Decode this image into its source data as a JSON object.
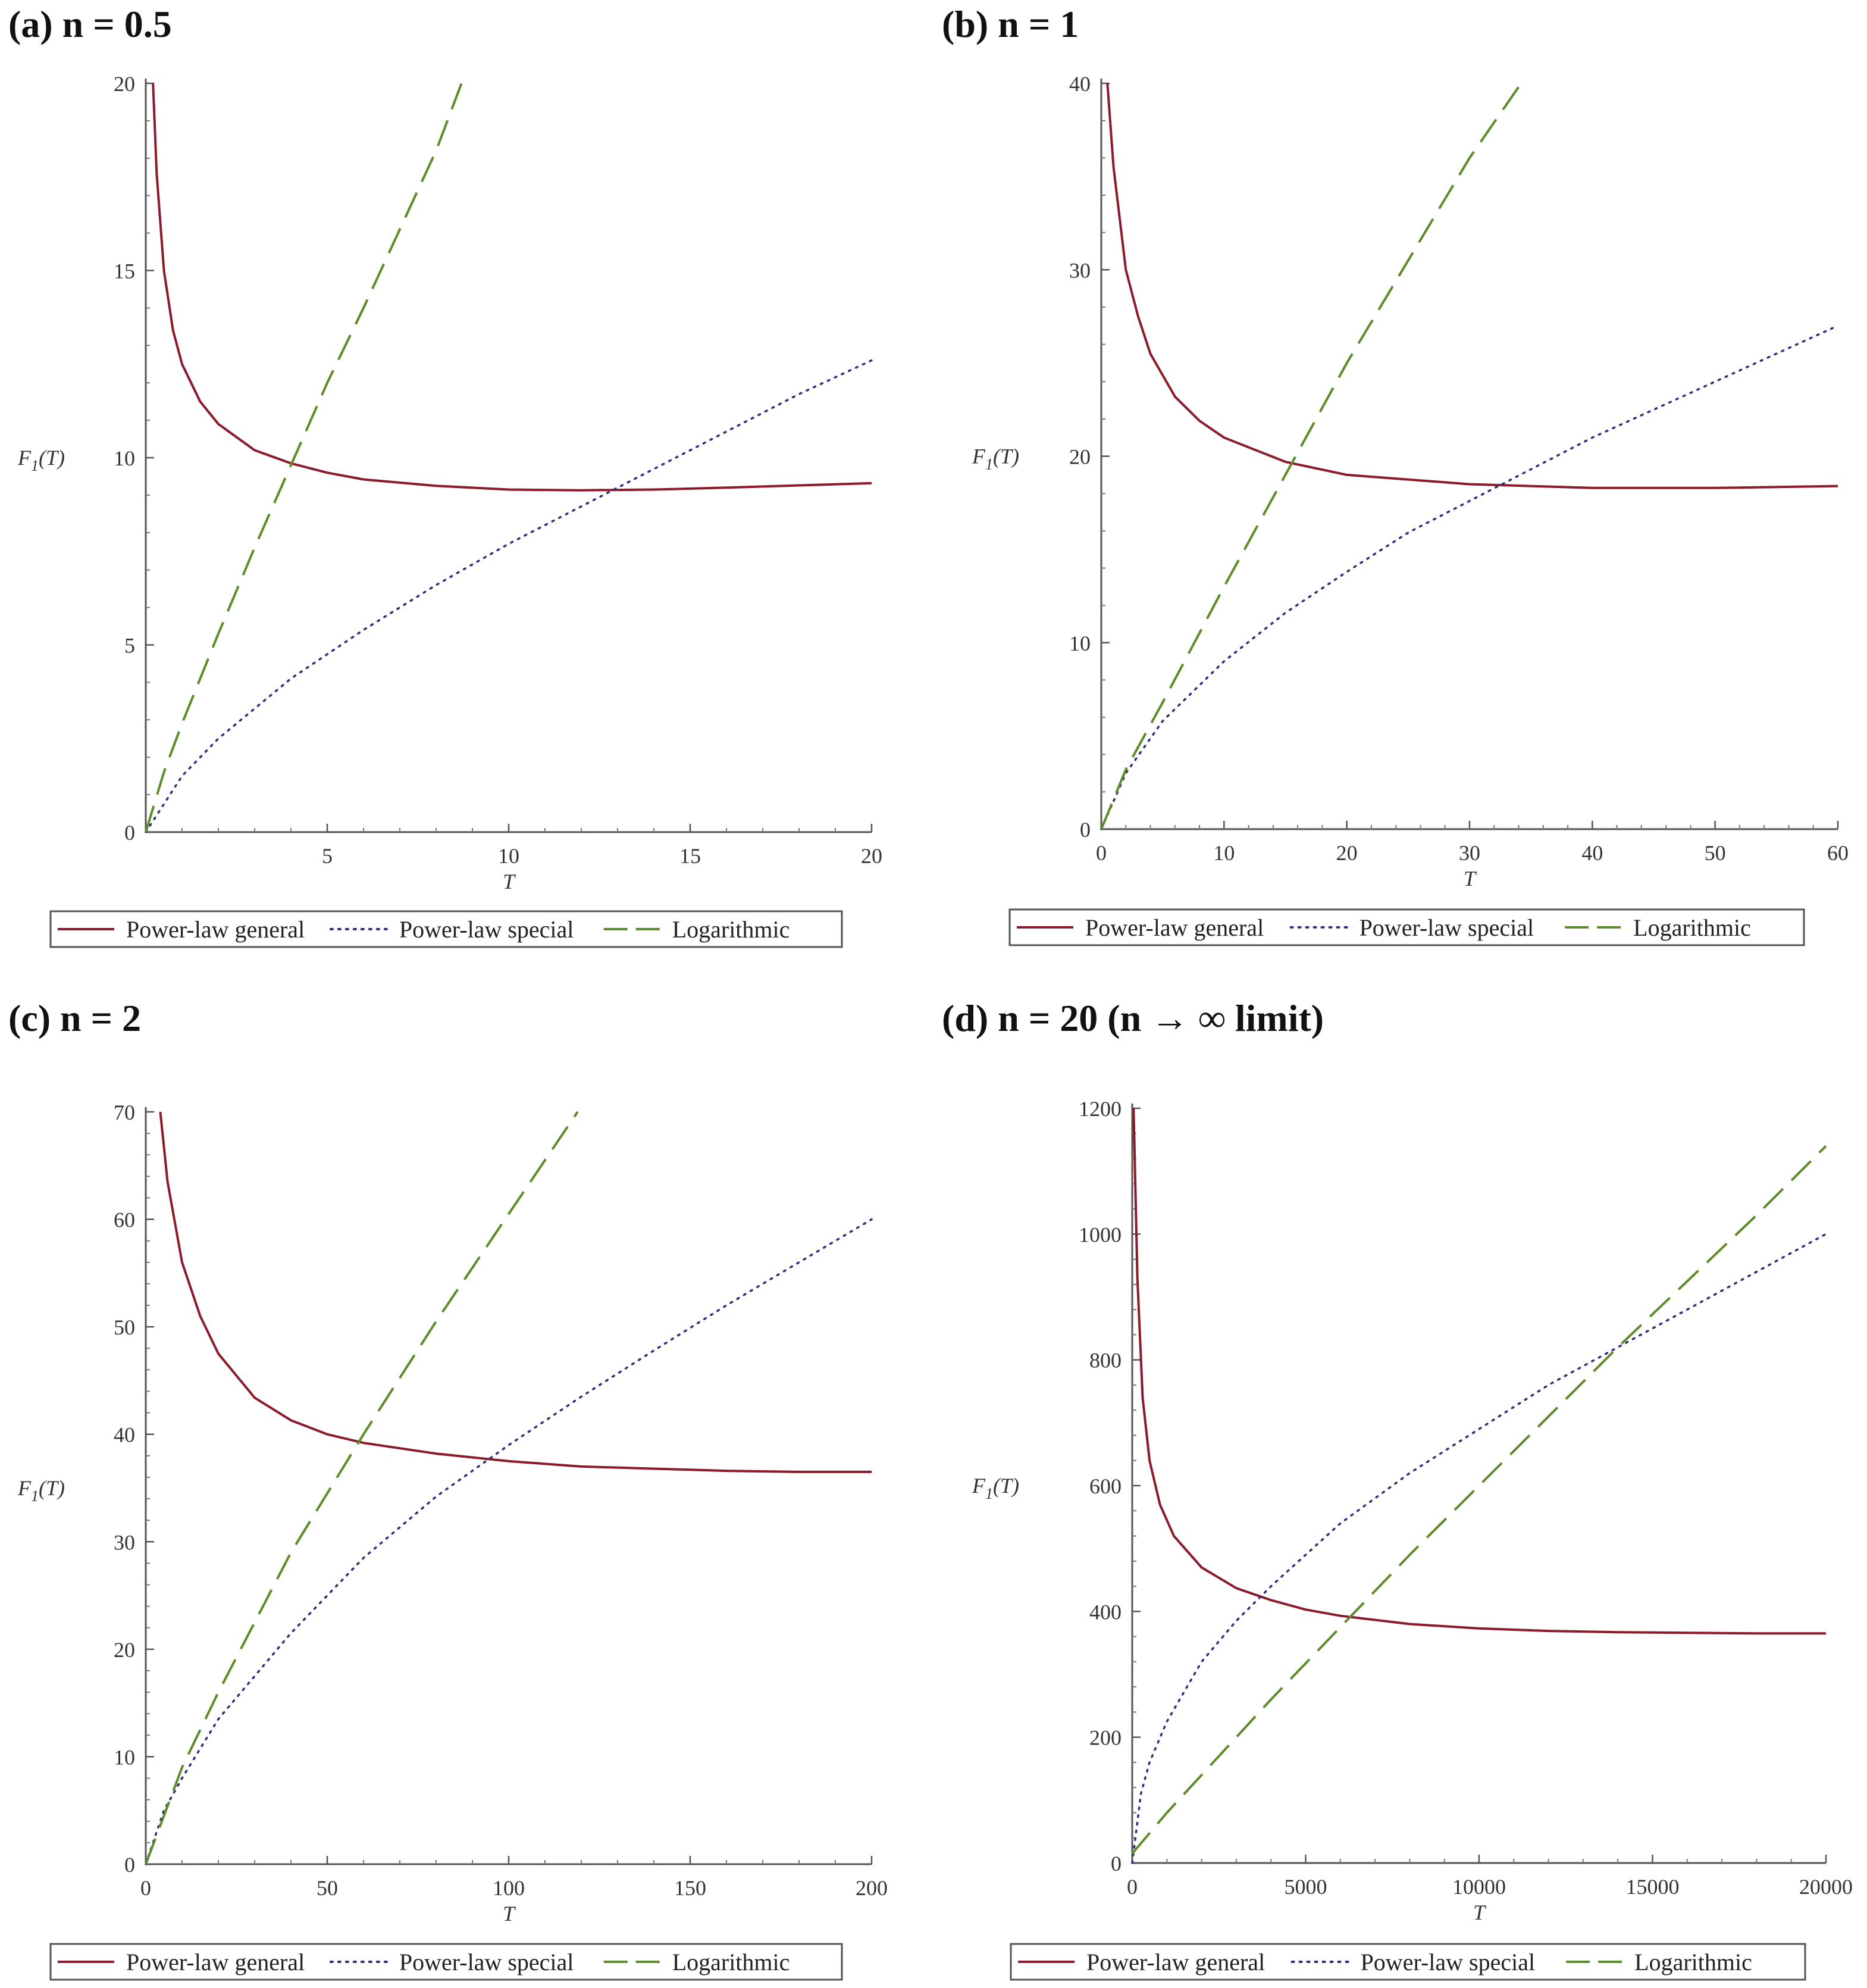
{
  "chart_data": [
    {
      "panel_title": "(a) n = 0.5",
      "type": "line",
      "xlabel": "T",
      "ylabel_main": "F",
      "ylabel_sub": "1",
      "ylabel_arg": "(T)",
      "xlim": [
        0,
        20
      ],
      "ylim": [
        0,
        20
      ],
      "xticks": [
        5,
        10,
        15,
        20
      ],
      "yticks": [
        0,
        5,
        10,
        15,
        20
      ],
      "series": [
        {
          "name": "Power-law general",
          "style": "solid",
          "color": "#8B1A2B",
          "x": [
            0.2,
            0.3,
            0.5,
            0.75,
            1,
            1.5,
            2,
            3,
            4,
            5,
            6,
            8,
            10,
            12,
            14,
            16,
            18,
            20
          ],
          "y": [
            20.0,
            17.6,
            15.0,
            13.4,
            12.5,
            11.5,
            10.9,
            10.2,
            9.85,
            9.6,
            9.42,
            9.25,
            9.15,
            9.13,
            9.15,
            9.2,
            9.26,
            9.32
          ]
        },
        {
          "name": "Power-law special",
          "style": "dotted",
          "color": "#2E2E7A",
          "x": [
            0,
            1,
            2,
            4,
            6,
            8,
            10,
            12,
            14,
            16,
            18,
            20
          ],
          "y": [
            0,
            1.5,
            2.5,
            4.1,
            5.4,
            6.6,
            7.7,
            8.7,
            9.7,
            10.7,
            11.7,
            12.6
          ]
        },
        {
          "name": "Logarithmic",
          "style": "dashed",
          "color": "#5E8C2A",
          "x": [
            0,
            0.5,
            1,
            2,
            3,
            4,
            5,
            6,
            7,
            8,
            8.7
          ],
          "y": [
            0,
            1.6,
            2.9,
            5.3,
            7.6,
            9.8,
            12.0,
            14.0,
            16.1,
            18.2,
            20.0
          ]
        }
      ],
      "legend": [
        "Power-law general",
        "Power-law special",
        "Logarithmic"
      ]
    },
    {
      "panel_title": "(b) n = 1",
      "type": "line",
      "xlabel": "T",
      "ylabel_main": "F",
      "ylabel_sub": "1",
      "ylabel_arg": "(T)",
      "xlim": [
        0,
        60
      ],
      "ylim": [
        0,
        40
      ],
      "xticks": [
        0,
        10,
        20,
        30,
        40,
        50,
        60
      ],
      "yticks": [
        0,
        10,
        20,
        30,
        40
      ],
      "series": [
        {
          "name": "Power-law general",
          "style": "solid",
          "color": "#8B1A2B",
          "x": [
            0.5,
            1,
            2,
            3,
            4,
            6,
            8,
            10,
            15,
            20,
            30,
            40,
            50,
            60
          ],
          "y": [
            40.0,
            35.5,
            30.0,
            27.5,
            25.5,
            23.2,
            21.9,
            21.0,
            19.7,
            19.0,
            18.5,
            18.3,
            18.3,
            18.4
          ]
        },
        {
          "name": "Power-law special",
          "style": "dotted",
          "color": "#2E2E7A",
          "x": [
            0,
            2,
            5,
            10,
            15,
            20,
            25,
            30,
            35,
            40,
            45,
            50,
            55,
            60
          ],
          "y": [
            0,
            3.0,
            5.8,
            9.0,
            11.6,
            13.8,
            15.9,
            17.6,
            19.3,
            21.0,
            22.5,
            24.0,
            25.5,
            27.0
          ]
        },
        {
          "name": "Logarithmic",
          "style": "dashed",
          "color": "#5E8C2A",
          "x": [
            0,
            2,
            5,
            10,
            15,
            20,
            25,
            30,
            34.2
          ],
          "y": [
            0,
            3.2,
            6.8,
            13.0,
            19.0,
            25.0,
            30.5,
            36.0,
            40.0
          ]
        }
      ],
      "legend": [
        "Power-law general",
        "Power-law special",
        "Logarithmic"
      ]
    },
    {
      "panel_title": "(c) n = 2",
      "type": "line",
      "xlabel": "T",
      "ylabel_main": "F",
      "ylabel_sub": "1",
      "ylabel_arg": "(T)",
      "xlim": [
        0,
        200
      ],
      "ylim": [
        0,
        70
      ],
      "xticks": [
        0,
        50,
        100,
        150,
        200
      ],
      "yticks": [
        0,
        10,
        20,
        30,
        40,
        50,
        60,
        70
      ],
      "series": [
        {
          "name": "Power-law general",
          "style": "solid",
          "color": "#8B1A2B",
          "x": [
            4,
            6,
            10,
            15,
            20,
            30,
            40,
            50,
            60,
            80,
            100,
            120,
            140,
            160,
            180,
            200
          ],
          "y": [
            70.0,
            63.5,
            56.0,
            51.0,
            47.5,
            43.4,
            41.3,
            40.0,
            39.2,
            38.2,
            37.5,
            37.0,
            36.8,
            36.6,
            36.5,
            36.5
          ]
        },
        {
          "name": "Power-law special",
          "style": "dotted",
          "color": "#2E2E7A",
          "x": [
            0,
            5,
            10,
            20,
            40,
            60,
            80,
            100,
            120,
            140,
            160,
            180,
            200
          ],
          "y": [
            0,
            5.0,
            8.0,
            13.5,
            21.5,
            28.5,
            34.2,
            39.0,
            43.5,
            47.8,
            52.0,
            56.0,
            60.0
          ]
        },
        {
          "name": "Logarithmic",
          "style": "dashed",
          "color": "#5E8C2A",
          "x": [
            0,
            10,
            20,
            40,
            60,
            80,
            100,
            119
          ],
          "y": [
            0,
            9.0,
            16.0,
            29.0,
            40.0,
            50.5,
            60.5,
            70.0
          ]
        }
      ],
      "legend": [
        "Power-law general",
        "Power-law special",
        "Logarithmic"
      ]
    },
    {
      "panel_title": "(d) n = 20 (n → ∞ limit)",
      "type": "line",
      "xlabel": "T",
      "ylabel_main": "F",
      "ylabel_sub": "1",
      "ylabel_arg": "(T)",
      "xlim": [
        0,
        20000
      ],
      "ylim": [
        0,
        1200
      ],
      "xticks": [
        0,
        5000,
        10000,
        15000,
        20000
      ],
      "yticks": [
        0,
        200,
        400,
        600,
        800,
        1000,
        1200
      ],
      "series": [
        {
          "name": "Power-law general",
          "style": "solid",
          "color": "#8B1A2B",
          "x": [
            40,
            80,
            150,
            300,
            500,
            800,
            1200,
            2000,
            3000,
            4000,
            5000,
            6000,
            8000,
            10000,
            12000,
            14000,
            16000,
            18000,
            20000
          ],
          "y": [
            1200,
            1100,
            930,
            740,
            640,
            570,
            520,
            470,
            437,
            418,
            403,
            393,
            380,
            373,
            369,
            367,
            366,
            365,
            365
          ]
        },
        {
          "name": "Power-law special",
          "style": "dotted",
          "color": "#2E2E7A",
          "x": [
            0,
            250,
            500,
            1000,
            2000,
            3000,
            4000,
            5000,
            6000,
            8000,
            10000,
            12000,
            14000,
            16000,
            18000,
            20000
          ],
          "y": [
            0,
            110,
            160,
            225,
            320,
            385,
            440,
            490,
            540,
            620,
            690,
            760,
            820,
            880,
            940,
            1000
          ]
        },
        {
          "name": "Logarithmic",
          "style": "dashed",
          "color": "#5E8C2A",
          "x": [
            0,
            1000,
            2000,
            4000,
            6000,
            8000,
            10000,
            12000,
            14000,
            16000,
            18000,
            20000
          ],
          "y": [
            15,
            80,
            140,
            260,
            375,
            490,
            600,
            710,
            820,
            925,
            1030,
            1140
          ]
        }
      ],
      "legend": [
        "Power-law general",
        "Power-law special",
        "Logarithmic"
      ]
    }
  ]
}
